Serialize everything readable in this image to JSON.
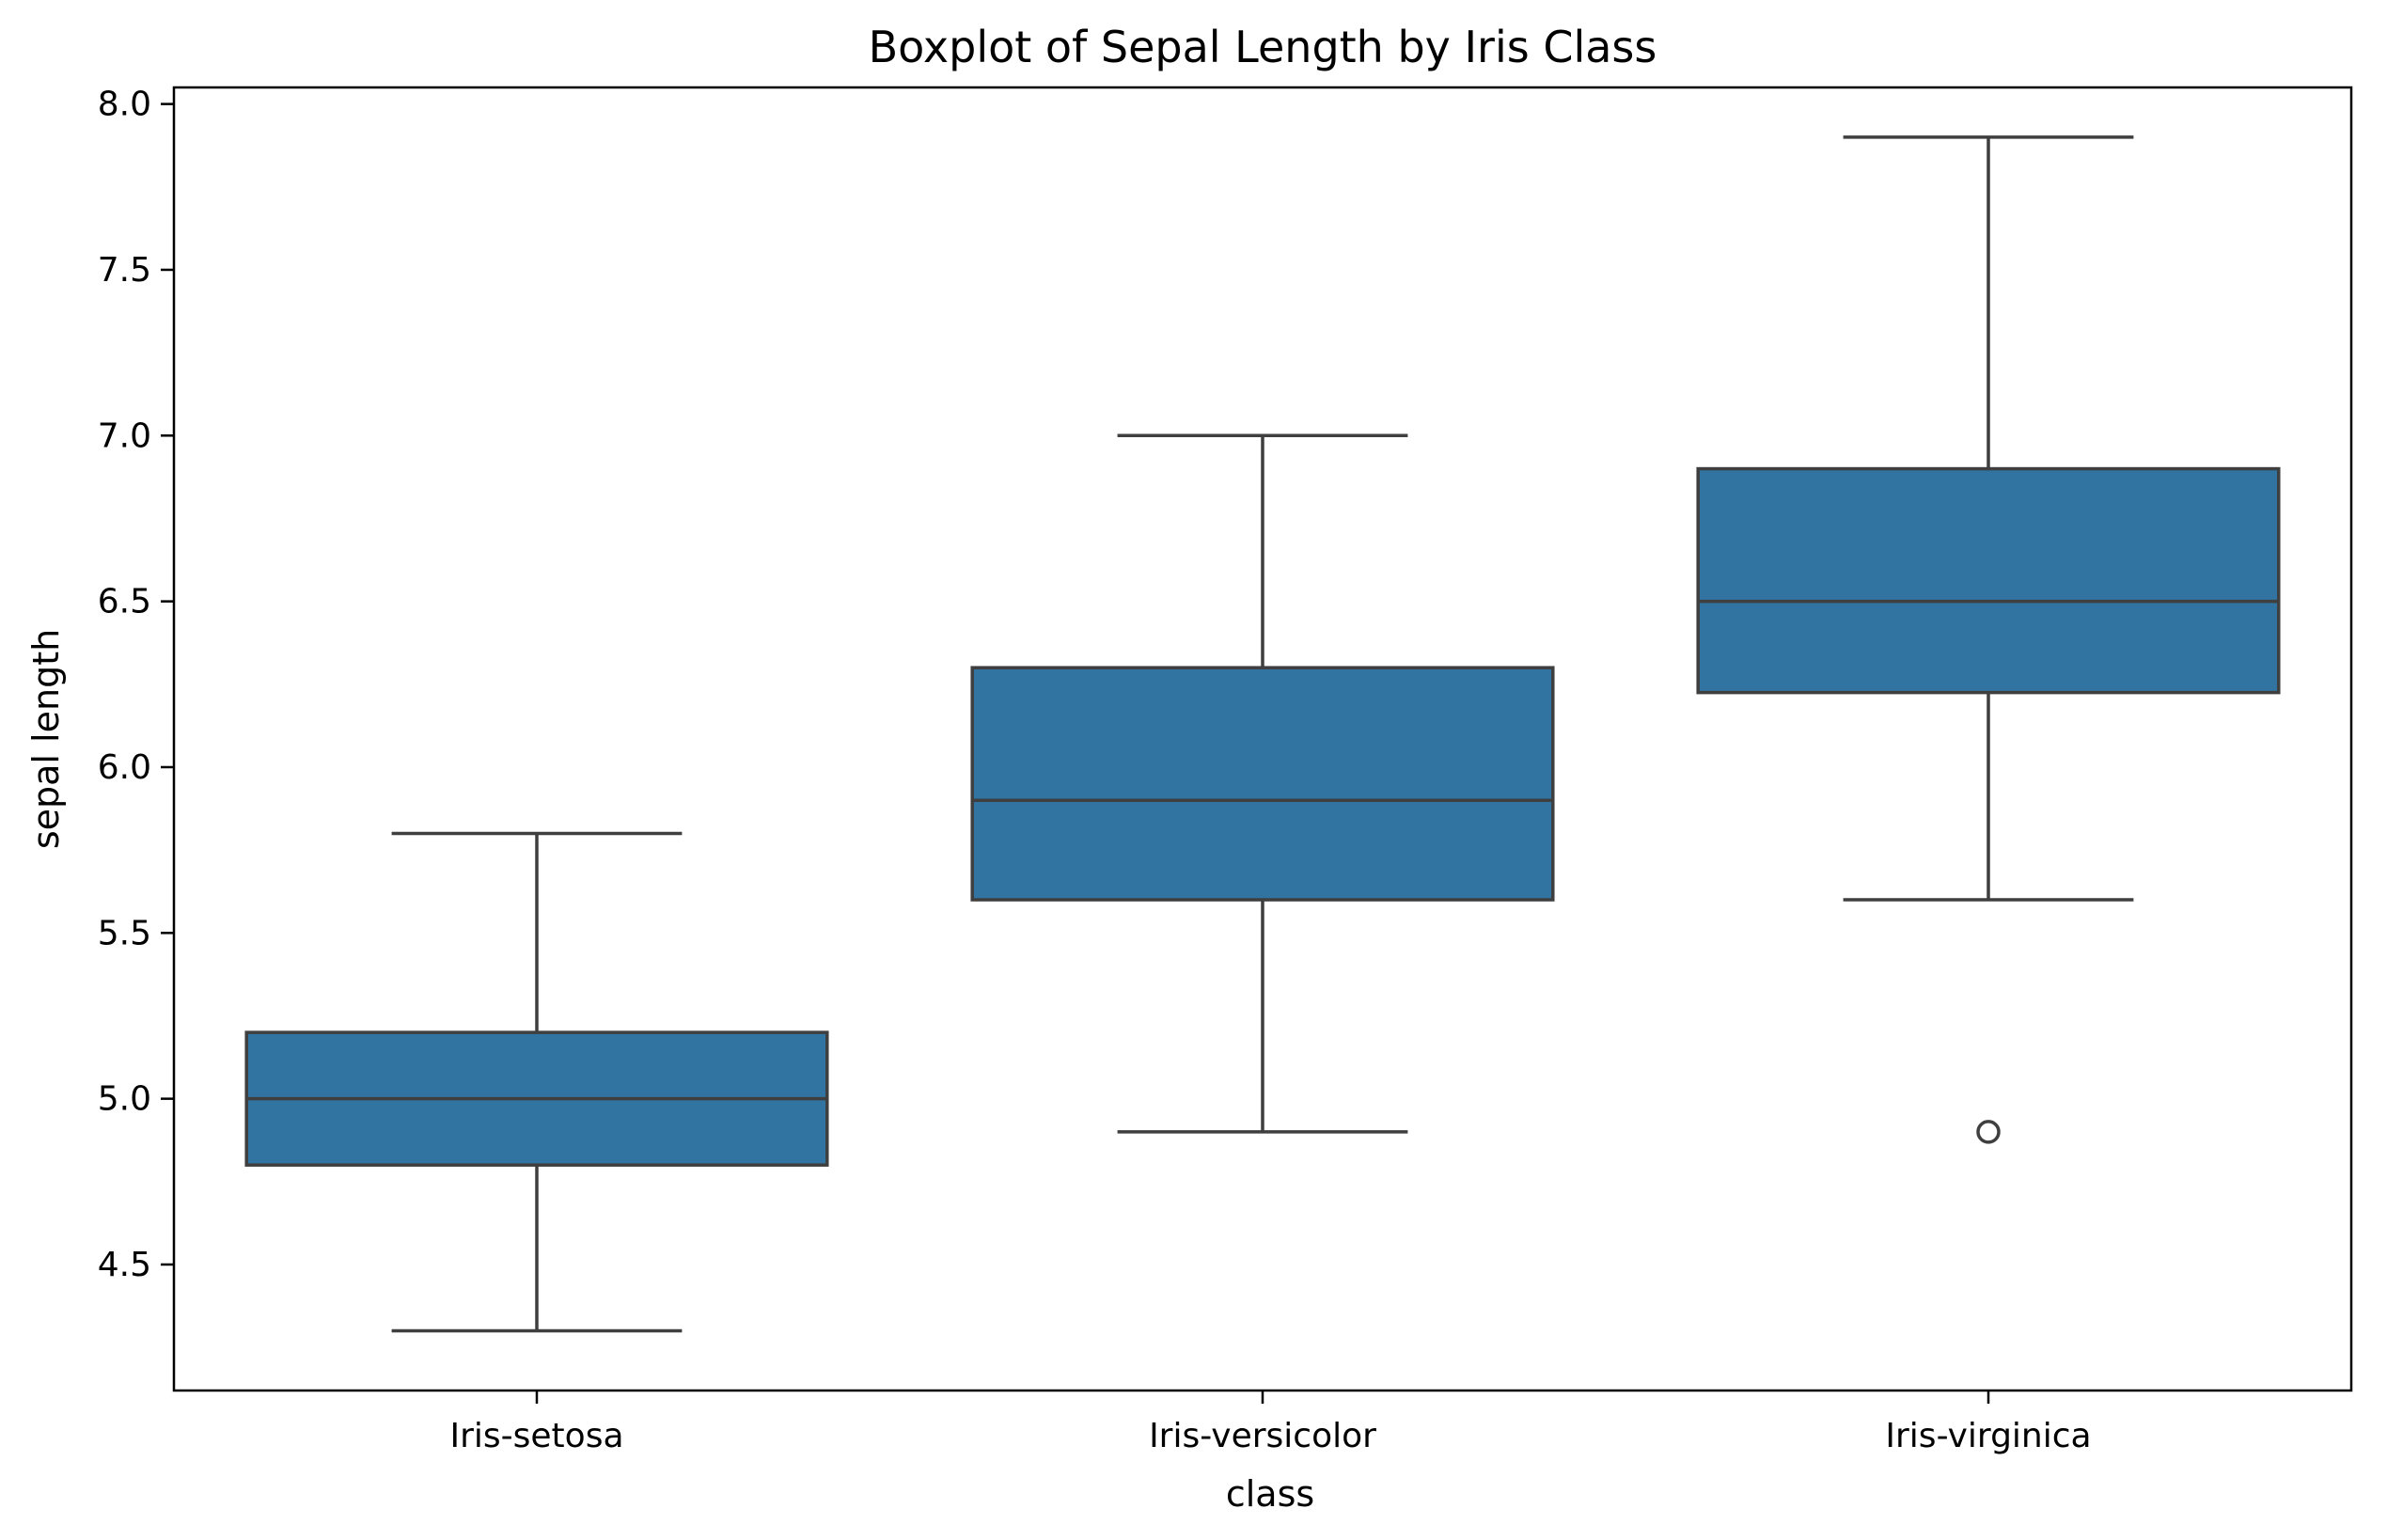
{
  "chart_data": {
    "type": "box",
    "title": "Boxplot of Sepal Length by Iris Class",
    "xlabel": "class",
    "ylabel": "sepal length",
    "ylim": [
      4.12,
      8.05
    ],
    "yticks": [
      "4.5",
      "5.0",
      "5.5",
      "6.0",
      "6.5",
      "7.0",
      "7.5",
      "8.0"
    ],
    "grid": false,
    "categories": [
      "Iris-setosa",
      "Iris-versicolor",
      "Iris-virginica"
    ],
    "boxes": [
      {
        "category": "Iris-setosa",
        "whisker_low": 4.3,
        "q1": 4.8,
        "median": 5.0,
        "q3": 5.2,
        "whisker_high": 5.8,
        "outliers": []
      },
      {
        "category": "Iris-versicolor",
        "whisker_low": 4.9,
        "q1": 5.6,
        "median": 5.9,
        "q3": 6.3,
        "whisker_high": 7.0,
        "outliers": []
      },
      {
        "category": "Iris-virginica",
        "whisker_low": 5.6,
        "q1": 6.225,
        "median": 6.5,
        "q3": 6.9,
        "whisker_high": 7.9,
        "outliers": [
          4.9
        ]
      }
    ],
    "colors": {
      "box_fill": "#3274a1",
      "line": "#3f3f3f",
      "axis": "#000000"
    }
  }
}
